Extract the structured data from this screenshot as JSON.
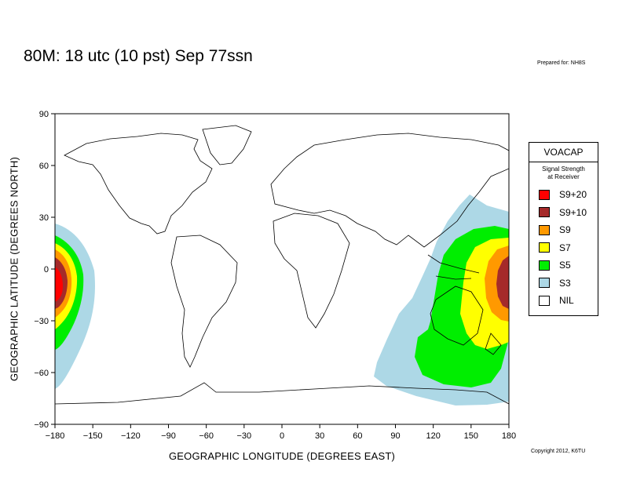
{
  "title": "80M:  18 utc (10 pst) Sep 77ssn",
  "prepared_for": "Prepared for: NH8S",
  "copyright": "Copyright 2012, K6TU",
  "x_axis": {
    "label": "GEOGRAPHIC LONGITUDE (DEGREES EAST)",
    "ticks": [
      -180,
      -150,
      -120,
      -90,
      -60,
      -30,
      0,
      30,
      60,
      90,
      120,
      150,
      180
    ],
    "range": [
      -180,
      180
    ]
  },
  "y_axis": {
    "label": "GEOGRAPHIC LATITUDE (DEGREES NORTH)",
    "ticks": [
      90,
      60,
      30,
      0,
      -30,
      -60,
      -90
    ],
    "range": [
      -90,
      90
    ]
  },
  "legend": {
    "title": "VOACAP",
    "subtitle_line1": "Signal Strength",
    "subtitle_line2": "at Receiver",
    "items": [
      {
        "label": "S9+20",
        "color": "#ff0000"
      },
      {
        "label": "S9+10",
        "color": "#a52a2a"
      },
      {
        "label": "S9",
        "color": "#ff9900"
      },
      {
        "label": "S7",
        "color": "#ffff00"
      },
      {
        "label": "S5",
        "color": "#00ee00"
      },
      {
        "label": "S3",
        "color": "#add8e6"
      },
      {
        "label": "NIL",
        "color": "#ffffff"
      }
    ]
  },
  "coverage": {
    "center_lon": -180,
    "center_lat": -12,
    "colors": {
      "S3": "#add8e6",
      "S5": "#00ee00",
      "S7": "#ffff00",
      "S9": "#ff9900",
      "S9+10": "#a52a2a",
      "S9+20": "#ff0000"
    }
  }
}
